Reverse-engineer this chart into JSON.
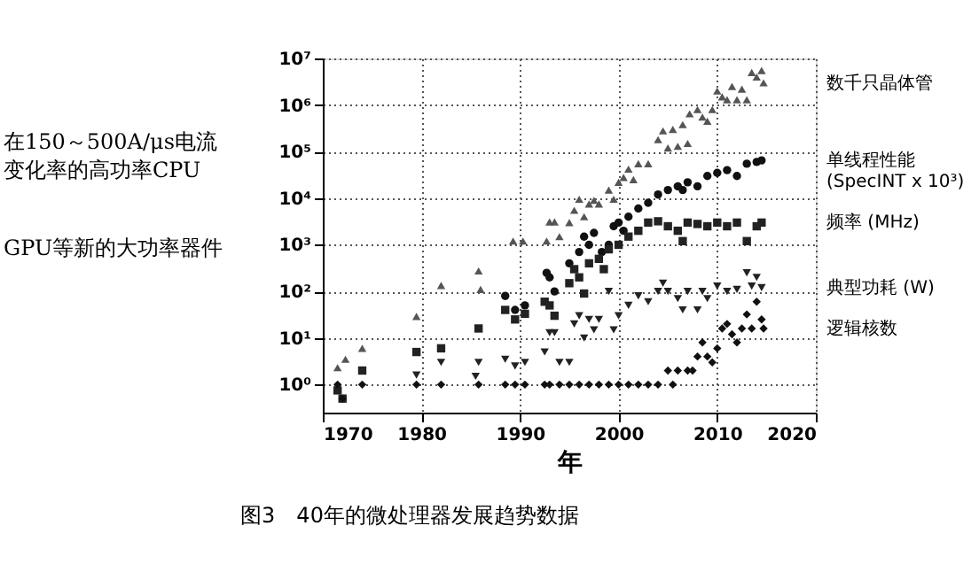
{
  "chart_data": {
    "type": "scatter",
    "title": "图3　40年的微处理器发展趋势数据",
    "xlabel": "年",
    "annotations": [
      "在150～500A/μs电流",
      "变化率的高功率CPU",
      "GPU等新的大功率器件"
    ],
    "xlim": [
      1970,
      2020
    ],
    "xticks": [
      1970,
      1980,
      1990,
      2000,
      2010,
      2020
    ],
    "ylim": [
      0.25,
      10000000
    ],
    "log": "y",
    "yticks": [
      {
        "value": 1,
        "label": "10⁰"
      },
      {
        "value": 10,
        "label": "10¹"
      },
      {
        "value": 100,
        "label": "10²"
      },
      {
        "value": 1000,
        "label": "10³"
      },
      {
        "value": 10000,
        "label": "10⁴"
      },
      {
        "value": 100000,
        "label": "10⁵"
      },
      {
        "value": 1000000,
        "label": "10⁶"
      },
      {
        "value": 10000000,
        "label": "10⁷"
      }
    ],
    "grid": true,
    "legend": "right",
    "series": [
      {
        "name": "数千只晶体管",
        "color": "#555555",
        "marker": "triangle",
        "x": [
          1971.5,
          1972.3,
          1974,
          1979.5,
          1982,
          1985.8,
          1986,
          1989.3,
          1990.3,
          1992.7,
          1993,
          1993.5,
          1994,
          1995,
          1995.5,
          1996,
          1996.5,
          1997,
          1997.5,
          1998,
          1999,
          1999.5,
          2000,
          2000.5,
          2001,
          2001.5,
          2002,
          2003,
          2004,
          2004.5,
          2005,
          2005.5,
          2006,
          2006.5,
          2007,
          2007.2,
          2008,
          2008.5,
          2009,
          2009.5,
          2010,
          2010.5,
          2011,
          2011.5,
          2012,
          2012.5,
          2013,
          2013.5,
          2014,
          2014.5,
          2014.7
        ],
        "values": [
          2.3,
          3.5,
          6,
          29,
          134,
          275,
          110,
          1200,
          1200,
          1200,
          3100,
          3100,
          1500,
          3000,
          5500,
          9500,
          4000,
          7500,
          9000,
          7500,
          15000,
          9500,
          22000,
          28000,
          42000,
          25000,
          55000,
          55000,
          180000,
          280000,
          120000,
          300000,
          130000,
          380000,
          150000,
          650000,
          800000,
          550000,
          450000,
          800000,
          2000000,
          1500000,
          1300000,
          2500000,
          1300000,
          2200000,
          1300000,
          5000000,
          4000000,
          5500000,
          3000000
        ]
      },
      {
        "name": "单线程性能\n(SpecINT x 10³)",
        "color": "#111111",
        "marker": "circle",
        "x": [
          1988.5,
          1989.5,
          1990.5,
          1992.7,
          1993,
          1993.5,
          1995,
          1996,
          1996.5,
          1997,
          1997.5,
          1998.3,
          1999,
          1999.5,
          2000,
          2000.5,
          2001,
          2002,
          2003,
          2004,
          2005,
          2006,
          2006.5,
          2007,
          2008,
          2009,
          2010,
          2011,
          2012,
          2013,
          2014,
          2014.5
        ],
        "values": [
          80,
          40,
          50,
          250,
          200,
          100,
          400,
          700,
          1500,
          1000,
          1800,
          700,
          1000,
          2500,
          3000,
          2000,
          4000,
          6000,
          8000,
          12000,
          15000,
          18000,
          15000,
          22000,
          18000,
          30000,
          35000,
          40000,
          30000,
          55000,
          60000,
          65000
        ]
      },
      {
        "name": "频率 (MHz)",
        "color": "#222222",
        "marker": "square",
        "x": [
          1971.5,
          1972,
          1974,
          1979.5,
          1982,
          1985.8,
          1988.5,
          1989.5,
          1990.5,
          1992.5,
          1993,
          1993.5,
          1995,
          1995.5,
          1996,
          1996.5,
          1997,
          1998,
          1998.5,
          1999,
          2000,
          2001,
          2002,
          2003,
          2004,
          2005,
          2006,
          2006.5,
          2007,
          2008,
          2009,
          2010,
          2011,
          2012,
          2013,
          2014,
          2014.5
        ],
        "values": [
          0.75,
          0.5,
          2,
          5,
          6,
          16,
          40,
          25,
          33,
          60,
          50,
          30,
          150,
          300,
          200,
          90,
          400,
          500,
          300,
          800,
          1000,
          1500,
          2000,
          3000,
          3200,
          2500,
          2000,
          1200,
          3000,
          2800,
          2500,
          3000,
          2500,
          3000,
          1200,
          2500,
          3000
        ]
      },
      {
        "name": "典型功耗 (W)",
        "color": "#222222",
        "marker": "triangle-down",
        "x": [
          1979.5,
          1982,
          1985.5,
          1985.8,
          1988.5,
          1989.5,
          1990.5,
          1992.5,
          1993,
          1993.5,
          1994,
          1995,
          1995.5,
          1996,
          1996.5,
          1997,
          1997.5,
          1998,
          1999,
          1999.5,
          2000,
          2001,
          2002,
          2003,
          2004,
          2004.5,
          2005,
          2006,
          2006.5,
          2007,
          2008,
          2008.5,
          2009,
          2010,
          2011,
          2012,
          2013,
          2013.5,
          2014,
          2014.5
        ],
        "values": [
          1.6,
          3,
          1.5,
          3,
          3.5,
          2.5,
          3,
          5,
          13,
          13,
          3,
          3,
          20,
          30,
          10,
          25,
          15,
          25,
          100,
          15,
          30,
          50,
          80,
          60,
          100,
          150,
          100,
          70,
          40,
          100,
          40,
          100,
          70,
          130,
          100,
          110,
          250,
          130,
          200,
          120
        ]
      },
      {
        "name": "逻辑核数",
        "color": "#111111",
        "marker": "diamond",
        "x": [
          1971.5,
          1972,
          1974,
          1979.5,
          1982,
          1985.8,
          1988.5,
          1989.5,
          1990.5,
          1992.5,
          1993,
          1994,
          1995,
          1996,
          1997,
          1998,
          1999,
          2000,
          2001,
          2002,
          2003,
          2004,
          2005,
          2005.5,
          2006,
          2007,
          2007.5,
          2008,
          2008.5,
          2009,
          2009.5,
          2010,
          2010.5,
          2011,
          2011.5,
          2012,
          2012.5,
          2013,
          2013.5,
          2014,
          2014.5,
          2014.7
        ],
        "values": [
          1,
          0.5,
          1,
          1,
          1,
          1,
          1,
          1,
          1,
          1,
          1,
          1,
          1,
          1,
          1,
          1,
          1,
          1,
          1,
          1,
          1,
          1,
          2,
          1,
          2,
          2,
          2,
          4,
          8,
          4,
          3,
          6,
          16,
          20,
          12,
          8,
          16,
          32,
          16,
          60,
          25,
          16
        ]
      }
    ]
  }
}
